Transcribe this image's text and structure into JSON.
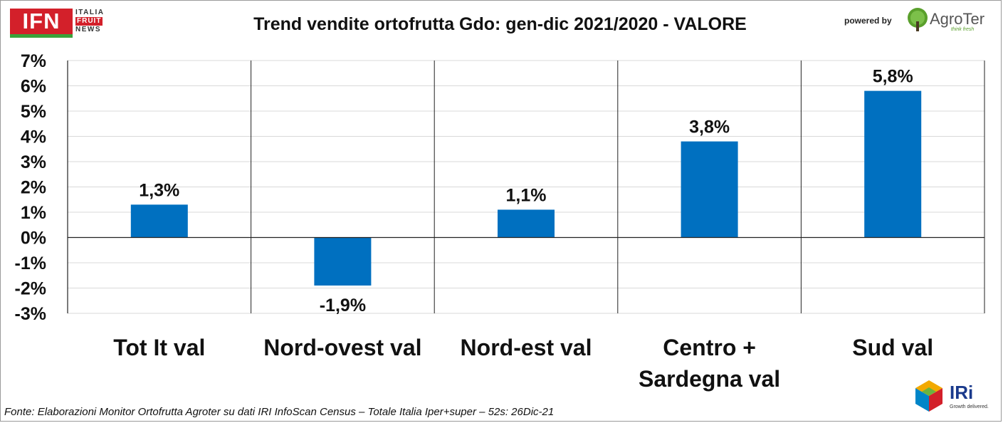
{
  "header": {
    "ifn_logo_text": "IFN",
    "ifn_line1": "ITALIA",
    "ifn_line2": "FRUIT",
    "ifn_line3": "NEWS",
    "powered_by": "powered by",
    "agroter_name": "AgroTer",
    "agroter_tagline": "think fresh"
  },
  "chart_data": {
    "type": "bar",
    "title": "Trend vendite ortofrutta Gdo: gen-dic 2021/2020 - VALORE",
    "categories": [
      "Tot It val",
      "Nord-ovest val",
      "Nord-est val",
      "Centro + Sardegna val",
      "Sud val"
    ],
    "category_lines": [
      [
        "Tot It val"
      ],
      [
        "Nord-ovest val"
      ],
      [
        "Nord-est val"
      ],
      [
        "Centro +",
        "Sardegna val"
      ],
      [
        "Sud val"
      ]
    ],
    "values": [
      1.3,
      -1.9,
      1.1,
      3.8,
      5.8
    ],
    "data_labels": [
      "1,3%",
      "-1,9%",
      "1,1%",
      "3,8%",
      "5,8%"
    ],
    "ylim": [
      -3,
      7
    ],
    "yticks": [
      7,
      6,
      5,
      4,
      3,
      2,
      1,
      0,
      -1,
      -2,
      -3
    ],
    "ytick_labels": [
      "7%",
      "6%",
      "5%",
      "4%",
      "3%",
      "2%",
      "1%",
      "0%",
      "-1%",
      "-2%",
      "-3%"
    ],
    "xlabel": "",
    "ylabel": "",
    "grid": true,
    "legend": false,
    "bar_color": "#0070c0"
  },
  "footer": {
    "source": "Fonte: Elaborazioni Monitor Ortofrutta Agroter su dati IRI InfoScan Census – Totale Italia Iper+super – 52s: 26Dic-21",
    "iri_name": "IRi",
    "iri_tagline": "Growth delivered."
  }
}
